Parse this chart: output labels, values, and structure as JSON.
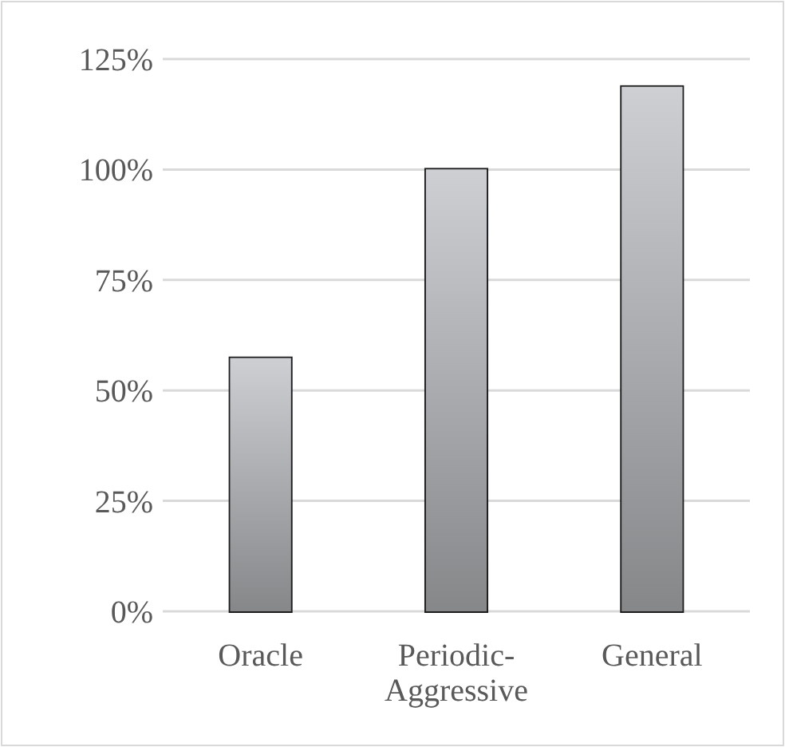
{
  "chart_data": {
    "type": "bar",
    "categories": [
      "Oracle",
      "Periodic-Aggressive",
      "General"
    ],
    "values": [
      57.3,
      100,
      118.7
    ],
    "color": "#a6a7aa",
    "ylim": [
      0,
      125
    ],
    "yticks": [
      {
        "value": 0,
        "label": "0%"
      },
      {
        "value": 25,
        "label": "25%"
      },
      {
        "value": 50,
        "label": "50%"
      },
      {
        "value": 75,
        "label": "75%"
      },
      {
        "value": 100,
        "label": "100%"
      },
      {
        "value": 125,
        "label": "125%"
      }
    ],
    "grid": "y"
  }
}
